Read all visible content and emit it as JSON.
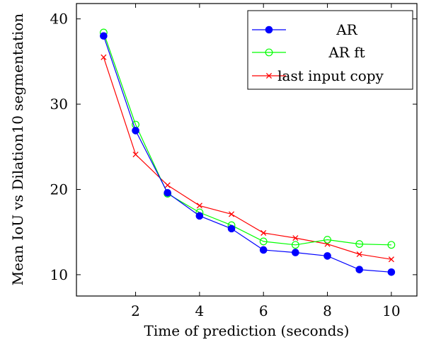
{
  "chart_data": {
    "type": "line",
    "title": "",
    "xlabel": "Time of prediction (seconds)",
    "ylabel": "Mean IoU vs Dilation10 segmentation",
    "xlim": [
      0.15,
      10.8
    ],
    "ylim": [
      7.5,
      41.8
    ],
    "xticks": [
      2,
      4,
      6,
      8,
      10
    ],
    "yticks": [
      10,
      20,
      30,
      40
    ],
    "grid": false,
    "legend_position": "top-right",
    "x": [
      1,
      2,
      3,
      4,
      5,
      6,
      7,
      8,
      9,
      10
    ],
    "series": [
      {
        "name": "AR",
        "color": "#0000ff",
        "marker": "filled-circle",
        "values": [
          38.0,
          26.9,
          19.6,
          16.9,
          15.4,
          12.9,
          12.6,
          12.2,
          10.6,
          10.3
        ]
      },
      {
        "name": "AR ft",
        "color": "#00ff00",
        "marker": "open-circle",
        "values": [
          38.4,
          27.6,
          19.5,
          17.3,
          15.8,
          13.9,
          13.5,
          14.1,
          13.6,
          13.5
        ]
      },
      {
        "name": "last input copy",
        "color": "#ff0000",
        "marker": "cross",
        "values": [
          35.5,
          24.1,
          20.5,
          18.1,
          17.1,
          14.9,
          14.3,
          13.6,
          12.4,
          11.8
        ]
      }
    ]
  }
}
